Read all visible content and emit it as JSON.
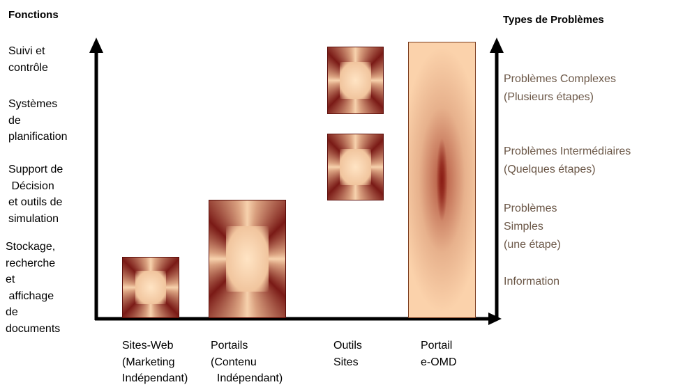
{
  "left_axis": {
    "title": "Fonctions",
    "levels": [
      "Suivi et\ncontrôle",
      "Systèmes\nde\nplanification",
      "Support de\n Décision\net outils de\nsimulation",
      "Stockage,\nrecherche\net\n affichage\nde\ndocuments"
    ]
  },
  "right_axis": {
    "title": "Types de Problèmes",
    "levels": [
      "Problèmes Complexes\n(Plusieurs étapes)",
      "Problèmes Intermédiaires\n(Quelques étapes)",
      "Problèmes\nSimples\n(une étape)",
      "Information"
    ]
  },
  "categories": [
    "Sites-Web\n(Marketing\nIndépendant)",
    "Portails\n(Contenu\n  Indépendant)",
    "Outils\nSites",
    "Portail\ne-OMD"
  ],
  "colors": {
    "bar_dark": "#7a1a16",
    "bar_light": "#f7d2ad",
    "right_label": "#6b5747",
    "axis": "#000000"
  }
}
